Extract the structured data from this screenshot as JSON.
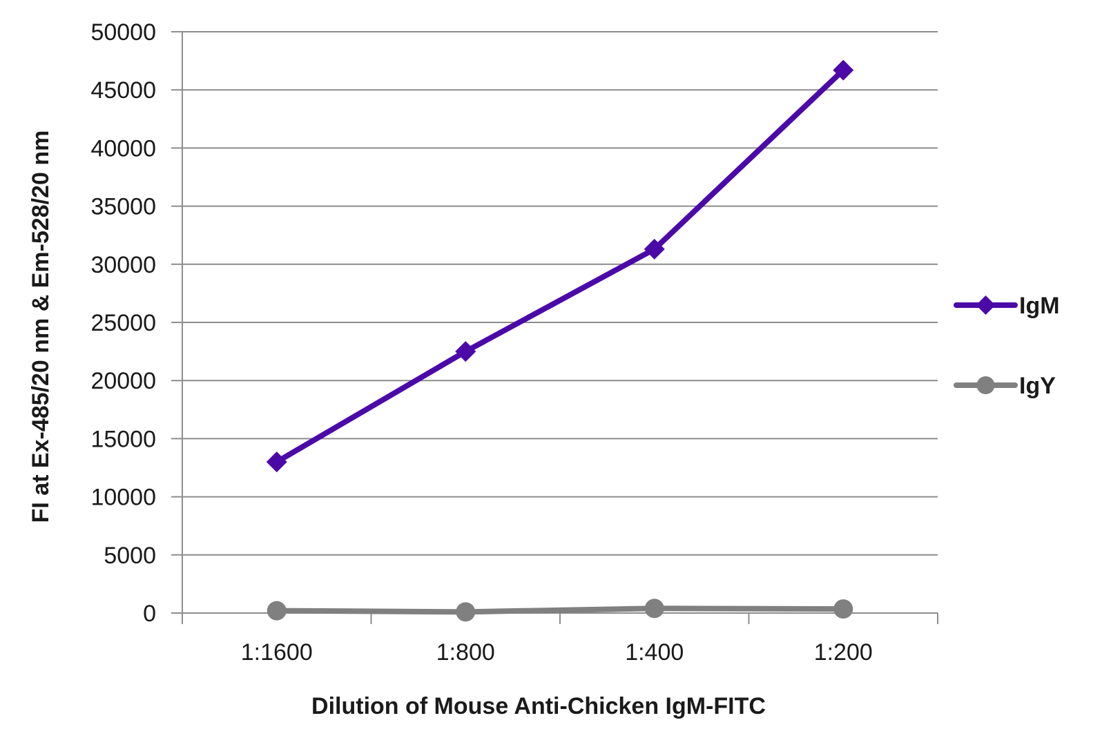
{
  "chart_data": {
    "type": "line",
    "xlabel": "Dilution of Mouse Anti-Chicken IgM-FITC",
    "ylabel": "FI at Ex-485/20 nm & Em-528/20 nm",
    "categories": [
      "1:1600",
      "1:800",
      "1:400",
      "1:200"
    ],
    "ylim": [
      0,
      50000
    ],
    "yticks": [
      "0",
      "5000",
      "10000",
      "15000",
      "20000",
      "25000",
      "30000",
      "35000",
      "40000",
      "45000",
      "50000"
    ],
    "grid": "horizontal",
    "legend_position": "right",
    "series": [
      {
        "name": "IgM",
        "values": [
          13000,
          22500,
          31300,
          46700
        ],
        "color": "#4b0aa8",
        "marker": "diamond"
      },
      {
        "name": "IgY",
        "values": [
          200,
          100,
          400,
          350
        ],
        "color": "#808080",
        "marker": "circle"
      }
    ]
  }
}
